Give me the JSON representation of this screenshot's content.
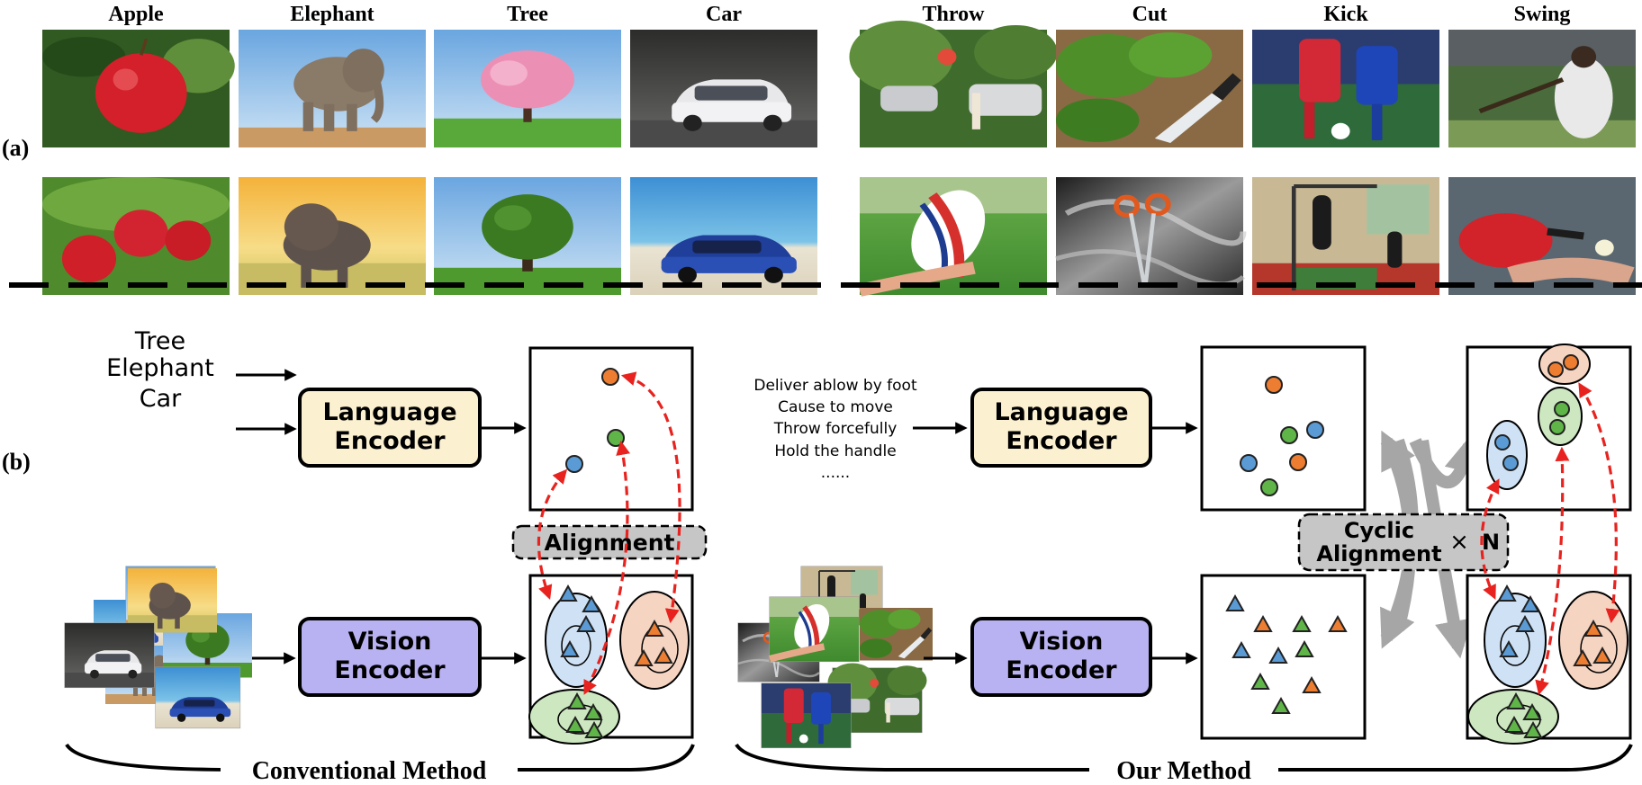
{
  "panel_a": {
    "label": "(a)",
    "object_classes": [
      "Apple",
      "Elephant",
      "Tree",
      "Car"
    ],
    "action_classes": [
      "Throw",
      "Cut",
      "Kick",
      "Swing"
    ]
  },
  "panel_b": {
    "label": "(b)",
    "conventional": {
      "input_words": [
        "Tree",
        "Elephant",
        "Car"
      ],
      "language_encoder": [
        "Language",
        "Encoder"
      ],
      "vision_encoder": [
        "Vision",
        "Encoder"
      ],
      "alignment_label": "Alignment",
      "caption": "Conventional Method"
    },
    "ours": {
      "input_phrases": [
        "Deliver ablow by foot",
        "Cause to move",
        "Throw forcefully",
        "Hold the handle",
        "......"
      ],
      "language_encoder": [
        "Language",
        "Encoder"
      ],
      "vision_encoder": [
        "Vision",
        "Encoder"
      ],
      "cyclic_label": [
        "Cyclic",
        "Alignment"
      ],
      "times_symbol": "×",
      "n_label": "N",
      "caption": "Our Method"
    }
  },
  "colors": {
    "blue": "#5b9bd5",
    "orange": "#ed7d31",
    "green": "#5fb548",
    "language_box": "#fbf0cf",
    "vision_box": "#b9b2f2",
    "red_arrow": "#e8231f",
    "gray_arrow": "#a6a6a6",
    "label_box": "#c6c6c6"
  },
  "icons": {
    "photos": [
      "apple-photo-icon",
      "elephant-photo-icon",
      "tree-photo-icon",
      "car-photo-icon",
      "throw-photo-icon",
      "cut-photo-icon",
      "kick-photo-icon",
      "swing-photo-icon"
    ]
  }
}
